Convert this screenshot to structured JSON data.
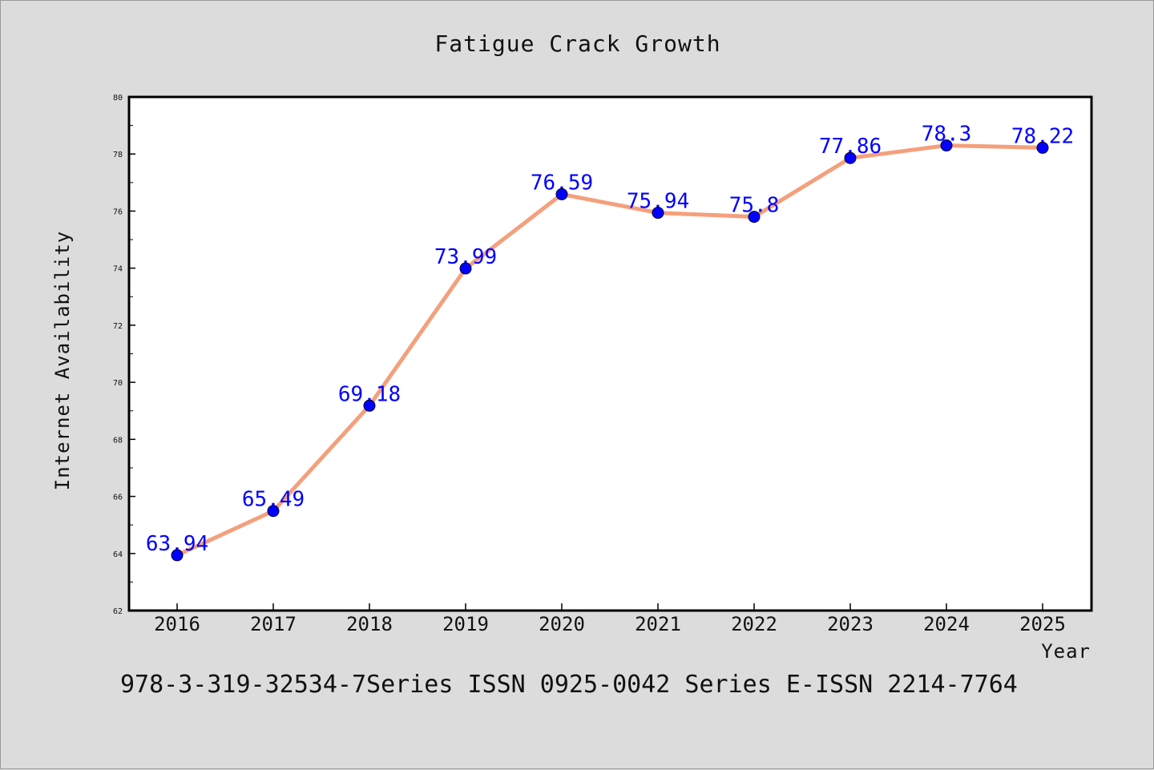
{
  "chart_data": {
    "type": "line",
    "title": "Fatigue Crack Growth",
    "xlabel": "Year",
    "ylabel": "Internet Availability",
    "categories": [
      "2016",
      "2017",
      "2018",
      "2019",
      "2020",
      "2021",
      "2022",
      "2023",
      "2024",
      "2025"
    ],
    "series": [
      {
        "values": [
          63.94,
          65.49,
          69.18,
          73.99,
          76.59,
          75.94,
          75.8,
          77.86,
          78.3,
          78.22
        ],
        "data_labels": [
          "63.94",
          "65.49",
          "69.18",
          "73.99",
          "76.59",
          "75.94",
          "75.8",
          "77.86",
          "78.3",
          "78.22"
        ],
        "line_color": "#f4a07c",
        "marker_color": "#0000ff"
      }
    ],
    "ylim": [
      62,
      80
    ],
    "yticks": [
      62,
      64,
      66,
      68,
      70,
      72,
      74,
      76,
      78,
      80
    ],
    "grid": false,
    "legend": "none"
  },
  "footer": {
    "text": "978-3-319-32534-7Series ISSN 0925-0042 Series E-ISSN 2214-7764"
  },
  "colors": {
    "background": "#dcdcdc",
    "plot_background": "#ffffff",
    "axis": "#000000",
    "label_color": "#0000ff"
  }
}
